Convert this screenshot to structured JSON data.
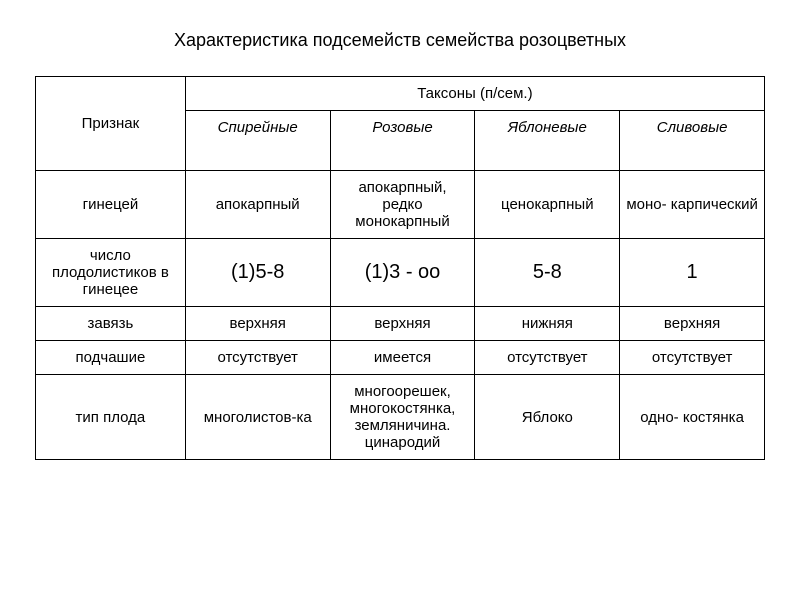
{
  "title": "Характеристика подсемейств семейства розоцветных",
  "table": {
    "header": {
      "row_label": "Признак",
      "taxon_group": "Таксоны (п/сем.)",
      "subfamilies": [
        "Спирейные",
        "Розовые",
        "Яблоневые",
        "Сливовые"
      ]
    },
    "rows": [
      {
        "label": "гинецей",
        "cells": [
          "апокарпный",
          "апокарпный, редко монокарпный",
          "ценокарпный",
          "моно-\nкарпический"
        ]
      },
      {
        "label": "число плодолистиков в гинецее",
        "cells": [
          "(1)5-8",
          "(1)3 - оо",
          "5-8",
          "1"
        ],
        "big": true
      },
      {
        "label": "завязь",
        "cells": [
          "верхняя",
          "верхняя",
          "нижняя",
          "верхняя"
        ]
      },
      {
        "label": "подчашие",
        "cells": [
          "отсутствует",
          "имеется",
          "отсутствует",
          "отсутствует"
        ]
      },
      {
        "label": "тип плода",
        "cells": [
          "многолистов-ка",
          "многоорешек, многокостянка, земляничина. цинародий",
          "Яблоко",
          "одно-\nкостянка"
        ]
      }
    ]
  },
  "colors": {
    "background": "#ffffff",
    "border": "#000000",
    "text": "#000000"
  },
  "fonts": {
    "title_size": 18,
    "cell_size": 15,
    "big_size": 20,
    "family": "Arial"
  }
}
